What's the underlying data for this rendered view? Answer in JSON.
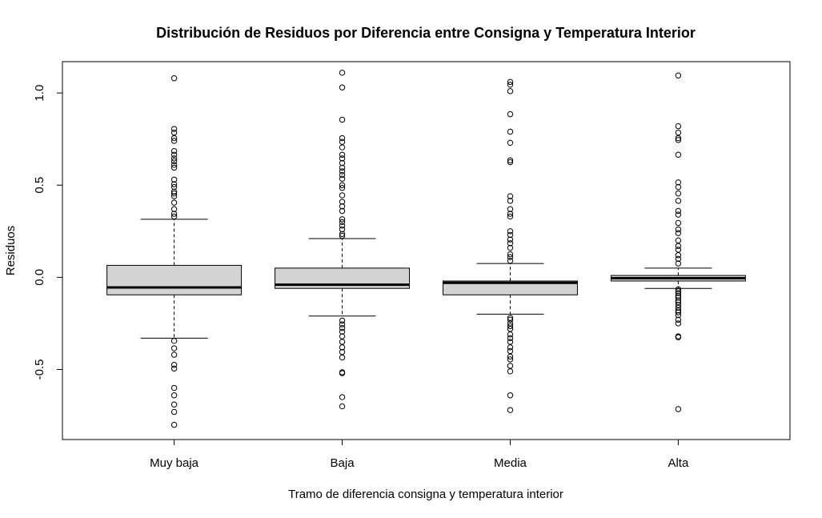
{
  "chart_data": {
    "type": "boxplot",
    "title": "Distribución de Residuos por Diferencia entre Consigna y Temperatura Interior",
    "xlabel": "Tramo de diferencia consigna y temperatura interior",
    "ylabel": "Residuos",
    "ylim": [
      -0.88,
      1.17
    ],
    "yticks": [
      -0.5,
      0.0,
      0.5,
      1.0
    ],
    "ytick_labels": [
      "-0.5",
      "0.0",
      "0.5",
      "1.0"
    ],
    "categories": [
      "Muy baja",
      "Baja",
      "Media",
      "Alta"
    ],
    "boxes": [
      {
        "name": "Muy baja",
        "q1": -0.095,
        "median": -0.055,
        "q3": 0.065,
        "whisker_low": -0.33,
        "whisker_high": 0.315,
        "outliers": [
          1.08,
          0.805,
          0.785,
          0.755,
          0.74,
          0.685,
          0.665,
          0.645,
          0.63,
          0.61,
          0.595,
          0.53,
          0.505,
          0.49,
          0.465,
          0.455,
          0.44,
          0.405,
          0.37,
          0.345,
          0.33,
          -0.345,
          -0.385,
          -0.42,
          -0.475,
          -0.495,
          -0.6,
          -0.64,
          -0.69,
          -0.73,
          -0.8
        ]
      },
      {
        "name": "Baja",
        "q1": -0.06,
        "median": -0.04,
        "q3": 0.05,
        "whisker_low": -0.21,
        "whisker_high": 0.21,
        "outliers": [
          1.11,
          1.03,
          0.855,
          0.755,
          0.735,
          0.705,
          0.665,
          0.645,
          0.62,
          0.595,
          0.575,
          0.555,
          0.535,
          0.5,
          0.485,
          0.445,
          0.41,
          0.385,
          0.36,
          0.315,
          0.3,
          0.28,
          0.26,
          0.235,
          0.225,
          -0.235,
          -0.255,
          -0.275,
          -0.295,
          -0.32,
          -0.35,
          -0.38,
          -0.405,
          -0.435,
          -0.515,
          -0.52,
          -0.65,
          -0.7
        ]
      },
      {
        "name": "Media",
        "q1": -0.095,
        "median": -0.03,
        "q3": -0.02,
        "whisker_low": -0.2,
        "whisker_high": 0.075,
        "outliers": [
          1.06,
          1.045,
          1.01,
          0.885,
          0.79,
          0.73,
          0.635,
          0.625,
          0.44,
          0.415,
          0.37,
          0.345,
          0.33,
          0.25,
          0.23,
          0.205,
          0.185,
          0.16,
          0.125,
          0.11,
          0.09,
          -0.22,
          -0.23,
          -0.25,
          -0.265,
          -0.28,
          -0.31,
          -0.33,
          -0.35,
          -0.38,
          -0.4,
          -0.43,
          -0.445,
          -0.48,
          -0.51,
          -0.64,
          -0.72
        ]
      },
      {
        "name": "Alta",
        "q1": -0.02,
        "median": -0.005,
        "q3": 0.01,
        "whisker_low": -0.06,
        "whisker_high": 0.05,
        "outliers": [
          1.095,
          0.82,
          0.785,
          0.755,
          0.745,
          0.665,
          0.515,
          0.49,
          0.455,
          0.415,
          0.36,
          0.34,
          0.295,
          0.26,
          0.24,
          0.2,
          0.17,
          0.15,
          0.12,
          0.1,
          0.075,
          -0.065,
          -0.075,
          -0.085,
          -0.1,
          -0.11,
          -0.125,
          -0.135,
          -0.15,
          -0.165,
          -0.18,
          -0.19,
          -0.205,
          -0.23,
          -0.25,
          -0.32,
          -0.325,
          -0.715
        ]
      }
    ],
    "box_fill": "#d3d3d3",
    "grid": false,
    "legend": "none"
  }
}
